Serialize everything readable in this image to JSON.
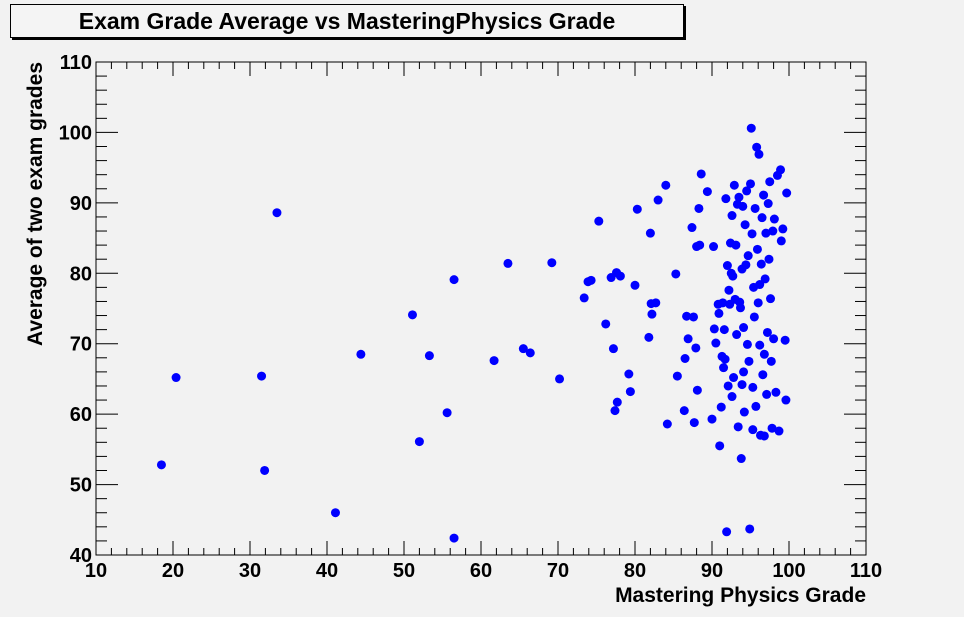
{
  "chart_data": {
    "type": "scatter",
    "title": "Exam Grade Average vs MasteringPhysics Grade",
    "xlabel": "Mastering Physics Grade",
    "ylabel": "Average of two exam grades",
    "xlim": [
      10,
      110
    ],
    "ylim": [
      40,
      110
    ],
    "x_ticks": [
      10,
      20,
      30,
      40,
      50,
      60,
      70,
      80,
      90,
      100,
      110
    ],
    "y_ticks": [
      40,
      50,
      60,
      70,
      80,
      90,
      100,
      110
    ],
    "grid": false,
    "marker_color": "#0000ff",
    "points": [
      [
        18.5,
        52.8
      ],
      [
        20.4,
        65.2
      ],
      [
        31.5,
        65.4
      ],
      [
        31.9,
        52.0
      ],
      [
        33.5,
        88.6
      ],
      [
        41.1,
        46.0
      ],
      [
        44.4,
        68.5
      ],
      [
        51.1,
        74.1
      ],
      [
        52.0,
        56.1
      ],
      [
        53.3,
        68.3
      ],
      [
        55.6,
        60.2
      ],
      [
        56.5,
        79.1
      ],
      [
        56.5,
        42.4
      ],
      [
        61.7,
        67.6
      ],
      [
        63.5,
        81.4
      ],
      [
        65.5,
        69.3
      ],
      [
        66.4,
        68.7
      ],
      [
        69.2,
        81.5
      ],
      [
        70.2,
        65.0
      ],
      [
        73.4,
        76.5
      ],
      [
        73.9,
        78.8
      ],
      [
        74.3,
        79.0
      ],
      [
        75.3,
        87.4
      ],
      [
        76.2,
        72.8
      ],
      [
        76.9,
        79.4
      ],
      [
        77.2,
        69.3
      ],
      [
        77.4,
        60.5
      ],
      [
        77.6,
        80.1
      ],
      [
        77.7,
        61.7
      ],
      [
        78.1,
        79.6
      ],
      [
        79.2,
        65.7
      ],
      [
        79.4,
        63.2
      ],
      [
        80.0,
        78.3
      ],
      [
        80.3,
        89.1
      ],
      [
        81.8,
        70.9
      ],
      [
        82.0,
        85.7
      ],
      [
        82.1,
        75.7
      ],
      [
        82.2,
        74.2
      ],
      [
        82.7,
        75.8
      ],
      [
        83.0,
        90.4
      ],
      [
        84.0,
        92.5
      ],
      [
        84.2,
        58.6
      ],
      [
        85.3,
        79.9
      ],
      [
        85.5,
        65.4
      ],
      [
        86.4,
        60.5
      ],
      [
        86.5,
        67.9
      ],
      [
        86.7,
        73.9
      ],
      [
        86.9,
        70.7
      ],
      [
        87.4,
        86.5
      ],
      [
        87.6,
        73.8
      ],
      [
        87.7,
        58.8
      ],
      [
        87.9,
        69.4
      ],
      [
        88.0,
        83.8
      ],
      [
        88.1,
        63.4
      ],
      [
        88.3,
        89.2
      ],
      [
        88.4,
        84.0
      ],
      [
        88.6,
        94.1
      ],
      [
        89.4,
        91.6
      ],
      [
        90.0,
        59.3
      ],
      [
        90.2,
        83.8
      ],
      [
        90.3,
        72.1
      ],
      [
        90.5,
        70.1
      ],
      [
        90.8,
        75.6
      ],
      [
        90.9,
        74.3
      ],
      [
        91.0,
        55.5
      ],
      [
        91.2,
        61.0
      ],
      [
        91.3,
        68.2
      ],
      [
        91.4,
        75.8
      ],
      [
        91.5,
        66.6
      ],
      [
        91.6,
        72.0
      ],
      [
        91.7,
        67.8
      ],
      [
        91.8,
        90.6
      ],
      [
        91.9,
        43.3
      ],
      [
        92.0,
        81.1
      ],
      [
        92.1,
        64.0
      ],
      [
        92.2,
        77.6
      ],
      [
        92.3,
        75.6
      ],
      [
        92.4,
        84.3
      ],
      [
        92.5,
        80.0
      ],
      [
        92.6,
        88.2
      ],
      [
        92.7,
        79.6
      ],
      [
        92.8,
        65.2
      ],
      [
        92.9,
        92.5
      ],
      [
        93.0,
        76.3
      ],
      [
        93.1,
        84.0
      ],
      [
        93.2,
        71.3
      ],
      [
        93.3,
        89.8
      ],
      [
        93.4,
        58.2
      ],
      [
        93.5,
        90.8
      ],
      [
        93.6,
        75.9
      ],
      [
        93.7,
        75.1
      ],
      [
        93.8,
        53.7
      ],
      [
        93.9,
        80.6
      ],
      [
        94.0,
        89.5
      ],
      [
        94.1,
        72.3
      ],
      [
        94.2,
        60.3
      ],
      [
        94.3,
        86.9
      ],
      [
        94.4,
        81.2
      ],
      [
        94.5,
        91.7
      ],
      [
        94.6,
        69.9
      ],
      [
        94.7,
        82.5
      ],
      [
        94.8,
        67.5
      ],
      [
        94.9,
        43.7
      ],
      [
        95.0,
        92.7
      ],
      [
        95.1,
        100.6
      ],
      [
        95.2,
        85.6
      ],
      [
        95.3,
        63.8
      ],
      [
        95.4,
        78.0
      ],
      [
        95.5,
        73.8
      ],
      [
        95.6,
        89.2
      ],
      [
        95.7,
        61.1
      ],
      [
        95.8,
        97.9
      ],
      [
        95.9,
        83.4
      ],
      [
        96.0,
        75.8
      ],
      [
        96.1,
        96.9
      ],
      [
        96.2,
        69.8
      ],
      [
        96.3,
        57.0
      ],
      [
        96.4,
        81.3
      ],
      [
        96.5,
        87.9
      ],
      [
        96.6,
        65.6
      ],
      [
        96.7,
        91.1
      ],
      [
        96.8,
        68.5
      ],
      [
        96.9,
        79.2
      ],
      [
        97.0,
        85.7
      ],
      [
        97.1,
        62.8
      ],
      [
        97.2,
        71.6
      ],
      [
        97.3,
        89.9
      ],
      [
        97.4,
        82.0
      ],
      [
        97.5,
        93.0
      ],
      [
        97.6,
        76.4
      ],
      [
        97.7,
        67.5
      ],
      [
        97.8,
        58.0
      ],
      [
        97.9,
        86.0
      ],
      [
        98.0,
        70.7
      ],
      [
        98.1,
        87.7
      ],
      [
        98.3,
        63.1
      ],
      [
        98.5,
        93.9
      ],
      [
        98.7,
        57.6
      ],
      [
        98.9,
        94.7
      ],
      [
        99.0,
        84.6
      ],
      [
        99.2,
        86.3
      ],
      [
        99.5,
        70.5
      ],
      [
        99.6,
        62.0
      ],
      [
        99.7,
        91.4
      ],
      [
        94.1,
        66.0
      ],
      [
        95.3,
        57.8
      ],
      [
        96.8,
        56.9
      ],
      [
        92.6,
        62.5
      ],
      [
        93.9,
        64.2
      ],
      [
        96.2,
        78.4
      ]
    ]
  }
}
